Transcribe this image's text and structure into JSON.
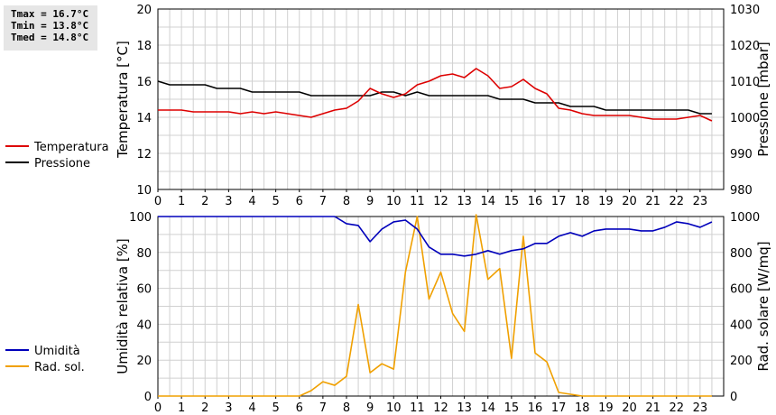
{
  "stats": {
    "tmax": "Tmax = 16.7°C",
    "tmin": "Tmin = 13.8°C",
    "tmed": "Tmed = 14.8°C"
  },
  "colors": {
    "temperature": "#dd0000",
    "pressure": "#000000",
    "humidity": "#0000bb",
    "radiation": "#f0a000",
    "grid": "#d0d0d0"
  },
  "chart_data": [
    {
      "type": "line",
      "x_ticks": [
        "0",
        "1",
        "2",
        "3",
        "4",
        "5",
        "6",
        "7",
        "8",
        "9",
        "10",
        "11",
        "12",
        "13",
        "14",
        "15",
        "16",
        "17",
        "18",
        "19",
        "20",
        "21",
        "22",
        "23"
      ],
      "xlim": [
        0,
        24
      ],
      "ylabel_left": "Temperatura [°C]",
      "ylabel_right": "Pressione [mbar]",
      "ylim_left": [
        10,
        20
      ],
      "ylim_right": [
        980,
        1030
      ],
      "yticks_left": [
        10,
        12,
        14,
        16,
        18,
        20
      ],
      "yticks_right": [
        980,
        990,
        1000,
        1010,
        1020,
        1030
      ],
      "grid": true,
      "legend_position": "left",
      "series": [
        {
          "name": "Temperatura",
          "axis": "left",
          "color": "#dd0000",
          "x": [
            0,
            0.5,
            1,
            1.5,
            2,
            2.5,
            3,
            3.5,
            4,
            4.5,
            5,
            5.5,
            6,
            6.5,
            7,
            7.5,
            8,
            8.5,
            9,
            9.5,
            10,
            10.5,
            11,
            11.5,
            12,
            12.5,
            13,
            13.5,
            14,
            14.5,
            15,
            15.5,
            16,
            16.5,
            17,
            17.5,
            18,
            18.5,
            19,
            19.5,
            20,
            20.5,
            21,
            21.5,
            22,
            22.5,
            23,
            23.5
          ],
          "values": [
            14.4,
            14.4,
            14.4,
            14.3,
            14.3,
            14.3,
            14.3,
            14.2,
            14.3,
            14.2,
            14.3,
            14.2,
            14.1,
            14.0,
            14.2,
            14.4,
            14.5,
            14.9,
            15.6,
            15.3,
            15.1,
            15.3,
            15.8,
            16.0,
            16.3,
            16.4,
            16.2,
            16.7,
            16.3,
            15.6,
            15.7,
            16.1,
            15.6,
            15.3,
            14.5,
            14.4,
            14.2,
            14.1,
            14.1,
            14.1,
            14.1,
            14.0,
            13.9,
            13.9,
            13.9,
            14.0,
            14.1,
            13.8
          ]
        },
        {
          "name": "Pressione",
          "axis": "right",
          "color": "#000000",
          "x": [
            0,
            0.5,
            1,
            1.5,
            2,
            2.5,
            3,
            3.5,
            4,
            4.5,
            5,
            5.5,
            6,
            6.5,
            7,
            7.5,
            8,
            8.5,
            9,
            9.5,
            10,
            10.5,
            11,
            11.5,
            12,
            12.5,
            13,
            13.5,
            14,
            14.5,
            15,
            15.5,
            16,
            16.5,
            17,
            17.5,
            18,
            18.5,
            19,
            19.5,
            20,
            20.5,
            21,
            21.5,
            22,
            22.5,
            23,
            23.5
          ],
          "values": [
            1010,
            1009,
            1009,
            1009,
            1009,
            1008,
            1008,
            1008,
            1007,
            1007,
            1007,
            1007,
            1007,
            1006,
            1006,
            1006,
            1006,
            1006,
            1006,
            1007,
            1007,
            1006,
            1007,
            1006,
            1006,
            1006,
            1006,
            1006,
            1006,
            1005,
            1005,
            1005,
            1004,
            1004,
            1004,
            1003,
            1003,
            1003,
            1002,
            1002,
            1002,
            1002,
            1002,
            1002,
            1002,
            1002,
            1001,
            1001
          ]
        }
      ]
    },
    {
      "type": "line",
      "x_ticks": [
        "0",
        "1",
        "2",
        "3",
        "4",
        "5",
        "6",
        "7",
        "8",
        "9",
        "10",
        "11",
        "12",
        "13",
        "14",
        "15",
        "16",
        "17",
        "18",
        "19",
        "20",
        "21",
        "22",
        "23"
      ],
      "xlim": [
        0,
        24
      ],
      "ylabel_left": "Umidità relativa [%]",
      "ylabel_right": "Rad. solare [W/mq]",
      "ylim_left": [
        0,
        100
      ],
      "ylim_right": [
        0,
        1000
      ],
      "yticks_left": [
        0,
        20,
        40,
        60,
        80,
        100
      ],
      "yticks_right": [
        0,
        200,
        400,
        600,
        800,
        1000
      ],
      "grid": true,
      "legend_position": "left",
      "series": [
        {
          "name": "Umidità",
          "axis": "left",
          "color": "#0000bb",
          "x": [
            0,
            0.5,
            1,
            1.5,
            2,
            2.5,
            3,
            3.5,
            4,
            4.5,
            5,
            5.5,
            6,
            6.5,
            7,
            7.5,
            8,
            8.5,
            9,
            9.5,
            10,
            10.5,
            11,
            11.5,
            12,
            12.5,
            13,
            13.5,
            14,
            14.5,
            15,
            15.5,
            16,
            16.5,
            17,
            17.5,
            18,
            18.5,
            19,
            19.5,
            20,
            20.5,
            21,
            21.5,
            22,
            22.5,
            23,
            23.5
          ],
          "values": [
            100,
            100,
            100,
            100,
            100,
            100,
            100,
            100,
            100,
            100,
            100,
            100,
            100,
            100,
            100,
            100,
            96,
            95,
            86,
            93,
            97,
            98,
            93,
            83,
            79,
            79,
            78,
            79,
            81,
            79,
            81,
            82,
            85,
            85,
            89,
            91,
            89,
            92,
            93,
            93,
            93,
            92,
            92,
            94,
            97,
            96,
            94,
            97
          ]
        },
        {
          "name": "Rad. sol.",
          "axis": "right",
          "color": "#f0a000",
          "x": [
            0,
            0.5,
            1,
            1.5,
            2,
            2.5,
            3,
            3.5,
            4,
            4.5,
            5,
            5.5,
            6,
            6.5,
            7,
            7.5,
            8,
            8.5,
            9,
            9.5,
            10,
            10.5,
            11,
            11.5,
            12,
            12.5,
            13,
            13.5,
            14,
            14.5,
            15,
            15.5,
            16,
            16.5,
            17,
            17.5,
            18,
            18.5,
            19,
            19.5,
            20,
            20.5,
            21,
            21.5,
            22,
            22.5,
            23,
            23.5
          ],
          "values": [
            0,
            0,
            0,
            0,
            0,
            0,
            0,
            0,
            0,
            0,
            0,
            0,
            0,
            30,
            80,
            60,
            110,
            510,
            130,
            180,
            150,
            690,
            1000,
            540,
            690,
            460,
            360,
            1010,
            650,
            710,
            210,
            890,
            240,
            190,
            20,
            10,
            0,
            0,
            0,
            0,
            0,
            0,
            0,
            0,
            0,
            0,
            0,
            0
          ]
        }
      ]
    }
  ]
}
